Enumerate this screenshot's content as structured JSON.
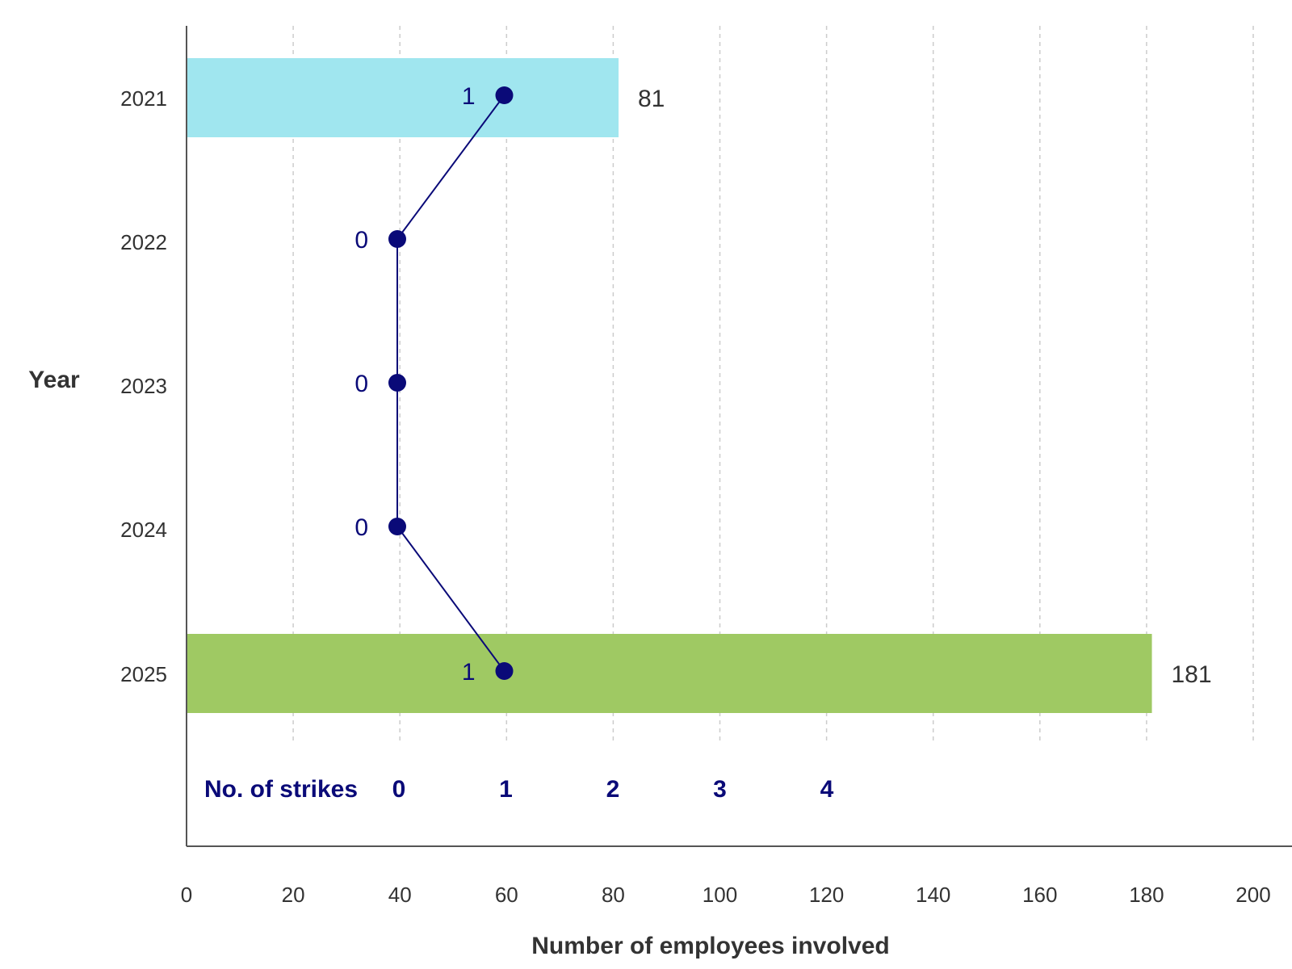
{
  "chart_data": {
    "type": "bar",
    "orientation": "horizontal",
    "categories": [
      "2021",
      "2022",
      "2023",
      "2024",
      "2025"
    ],
    "ylabel": "Year",
    "xlabel": "Number of employees involved",
    "xlim": [
      0,
      200
    ],
    "xticks": [
      "0",
      "20",
      "40",
      "60",
      "80",
      "100",
      "120",
      "140",
      "160",
      "180",
      "200"
    ],
    "grid": "vertical-dashed",
    "series": [
      {
        "type": "bar",
        "values": [
          81,
          null,
          null,
          null,
          181
        ],
        "value_labels": [
          "81",
          "",
          "",
          "",
          "181"
        ],
        "colors": [
          "#a0e6ef",
          "",
          "",
          "",
          "#9fc963"
        ]
      },
      {
        "type": "line",
        "values": [
          1,
          0,
          0,
          0,
          1
        ],
        "value_labels": [
          "1",
          "0",
          "0",
          "0",
          "1"
        ],
        "color": "#0a0a78",
        "secondary_axis": {
          "label": "No. of strikes",
          "ticks": [
            "0",
            "1",
            "2",
            "3",
            "4"
          ],
          "range": [
            0,
            4
          ]
        }
      }
    ]
  }
}
